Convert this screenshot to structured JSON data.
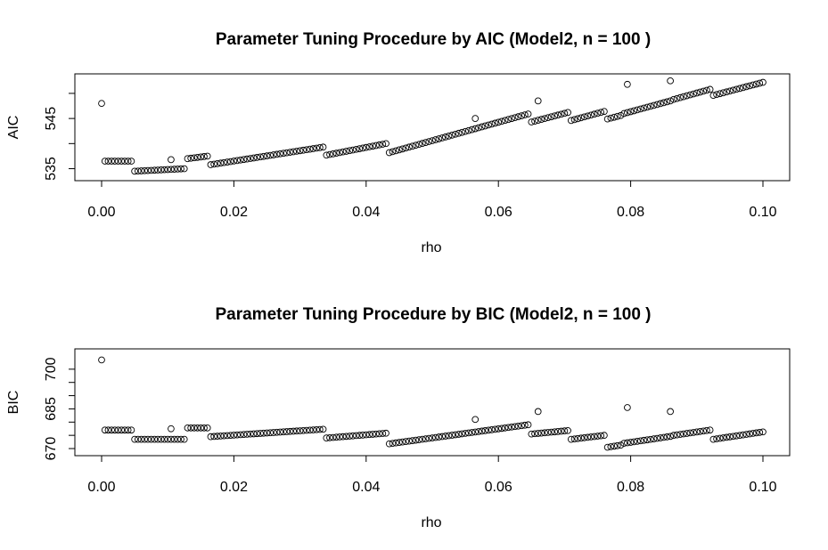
{
  "chart_data": [
    {
      "type": "scatter",
      "title": "Parameter Tuning Procedure by AIC (Model2, n =  100 )",
      "xlabel": "rho",
      "ylabel": "AIC",
      "xlim": [
        0,
        0.1
      ],
      "ylim": [
        533.5,
        553
      ],
      "xticks": [
        0.0,
        0.02,
        0.04,
        0.06,
        0.08,
        0.1
      ],
      "xtick_labels": [
        "0.00",
        "0.02",
        "0.04",
        "0.06",
        "0.08",
        "0.10"
      ],
      "yticks": [
        535,
        540,
        545,
        550
      ],
      "ytick_labels": [
        "535",
        "",
        "545",
        ""
      ],
      "grid": false,
      "marker": "open-circle",
      "segments": [
        {
          "x_start": 0.0005,
          "x_end": 0.0045,
          "y_start": 536.5,
          "y_end": 536.5
        },
        {
          "x_start": 0.005,
          "x_end": 0.0125,
          "y_start": 534.5,
          "y_end": 535.0
        },
        {
          "x_start": 0.013,
          "x_end": 0.016,
          "y_start": 537.0,
          "y_end": 537.5
        },
        {
          "x_start": 0.0165,
          "x_end": 0.0335,
          "y_start": 535.8,
          "y_end": 539.3
        },
        {
          "x_start": 0.034,
          "x_end": 0.043,
          "y_start": 537.7,
          "y_end": 540.0
        },
        {
          "x_start": 0.0435,
          "x_end": 0.0645,
          "y_start": 538.2,
          "y_end": 545.9
        },
        {
          "x_start": 0.065,
          "x_end": 0.0705,
          "y_start": 544.3,
          "y_end": 546.2
        },
        {
          "x_start": 0.071,
          "x_end": 0.076,
          "y_start": 544.6,
          "y_end": 546.4
        },
        {
          "x_start": 0.0765,
          "x_end": 0.0785,
          "y_start": 544.9,
          "y_end": 545.6
        },
        {
          "x_start": 0.079,
          "x_end": 0.086,
          "y_start": 546.0,
          "y_end": 548.5
        },
        {
          "x_start": 0.0865,
          "x_end": 0.092,
          "y_start": 548.8,
          "y_end": 550.8
        },
        {
          "x_start": 0.0925,
          "x_end": 0.1,
          "y_start": 549.6,
          "y_end": 552.2
        }
      ],
      "outliers": [
        {
          "x": 0.0,
          "y": 548.0
        },
        {
          "x": 0.0105,
          "y": 536.8
        },
        {
          "x": 0.0565,
          "y": 545.0
        },
        {
          "x": 0.066,
          "y": 548.5
        },
        {
          "x": 0.0795,
          "y": 551.8
        },
        {
          "x": 0.086,
          "y": 552.5
        }
      ]
    },
    {
      "type": "scatter",
      "title": "Parameter Tuning Procedure by BIC (Model2, n =  100 )",
      "xlabel": "rho",
      "ylabel": "BIC",
      "xlim": [
        0,
        0.1
      ],
      "ylim": [
        669,
        706
      ],
      "xticks": [
        0.0,
        0.02,
        0.04,
        0.06,
        0.08,
        0.1
      ],
      "xtick_labels": [
        "0.00",
        "0.02",
        "0.04",
        "0.06",
        "0.08",
        "0.10"
      ],
      "yticks": [
        670,
        675,
        680,
        685,
        690,
        695,
        700
      ],
      "ytick_labels": [
        "670",
        "",
        "",
        "685",
        "",
        "",
        "700"
      ],
      "grid": false,
      "marker": "open-circle",
      "segments": [
        {
          "x_start": 0.0005,
          "x_end": 0.0045,
          "y_start": 677.0,
          "y_end": 677.0
        },
        {
          "x_start": 0.005,
          "x_end": 0.0125,
          "y_start": 673.5,
          "y_end": 673.5
        },
        {
          "x_start": 0.013,
          "x_end": 0.016,
          "y_start": 677.8,
          "y_end": 677.8
        },
        {
          "x_start": 0.0165,
          "x_end": 0.0335,
          "y_start": 674.5,
          "y_end": 677.3
        },
        {
          "x_start": 0.034,
          "x_end": 0.043,
          "y_start": 674.0,
          "y_end": 675.8
        },
        {
          "x_start": 0.0435,
          "x_end": 0.0645,
          "y_start": 671.8,
          "y_end": 679.0
        },
        {
          "x_start": 0.065,
          "x_end": 0.0705,
          "y_start": 675.5,
          "y_end": 676.8
        },
        {
          "x_start": 0.071,
          "x_end": 0.076,
          "y_start": 673.5,
          "y_end": 675.0
        },
        {
          "x_start": 0.0765,
          "x_end": 0.0785,
          "y_start": 670.5,
          "y_end": 671.3
        },
        {
          "x_start": 0.079,
          "x_end": 0.086,
          "y_start": 672.0,
          "y_end": 674.6
        },
        {
          "x_start": 0.0865,
          "x_end": 0.092,
          "y_start": 675.0,
          "y_end": 677.0
        },
        {
          "x_start": 0.0925,
          "x_end": 0.1,
          "y_start": 673.5,
          "y_end": 676.3
        }
      ],
      "outliers": [
        {
          "x": 0.0,
          "y": 703.5
        },
        {
          "x": 0.0105,
          "y": 677.5
        },
        {
          "x": 0.0565,
          "y": 681.0
        },
        {
          "x": 0.066,
          "y": 684.0
        },
        {
          "x": 0.0795,
          "y": 685.5
        },
        {
          "x": 0.086,
          "y": 684.0
        }
      ]
    }
  ]
}
